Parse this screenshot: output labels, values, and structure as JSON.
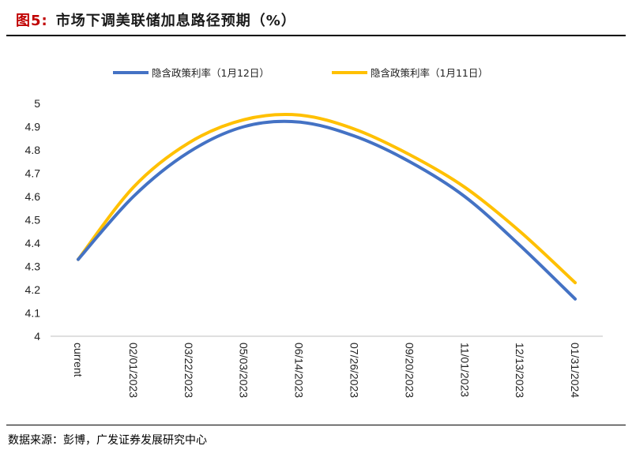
{
  "figure": {
    "label": "图5:",
    "title": "市场下调美联储加息路径预期（%）"
  },
  "source": "数据来源：彭博，广发证券发展研究中心",
  "chart_data": {
    "type": "line",
    "x": [
      "current",
      "02/01/2023",
      "03/22/2023",
      "05/03/2023",
      "06/14/2023",
      "07/26/2023",
      "09/20/2023",
      "11/01/2023",
      "12/13/2023",
      "01/31/2024"
    ],
    "series": [
      {
        "name": "隐含政策利率（1月12日）",
        "color": "#4472C4",
        "values": [
          4.33,
          4.6,
          4.79,
          4.9,
          4.92,
          4.86,
          4.75,
          4.6,
          4.39,
          4.16
        ]
      },
      {
        "name": "隐含政策利率（1月11日）",
        "color": "#FFC000",
        "values": [
          4.33,
          4.64,
          4.83,
          4.93,
          4.95,
          4.89,
          4.78,
          4.64,
          4.45,
          4.23
        ]
      }
    ],
    "yticks": [
      "4",
      "4.1",
      "4.2",
      "4.3",
      "4.4",
      "4.5",
      "4.6",
      "4.7",
      "4.8",
      "4.9",
      "5"
    ],
    "ylim": [
      4,
      5
    ],
    "grid": false,
    "legend": "top"
  }
}
